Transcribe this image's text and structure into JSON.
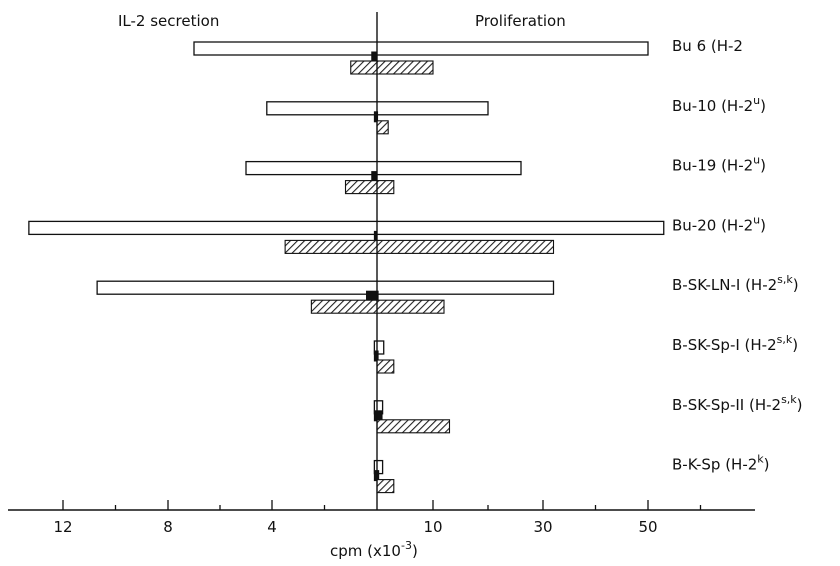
{
  "chart_data": {
    "type": "bar",
    "orientation": "horizontal-bidirectional",
    "left_label": "IL-2 secretion",
    "right_label": "Proliferation",
    "xlabel": "cpm (x10",
    "xlabel_sup": "-3",
    "xlabel_end": ")",
    "left_ticks": [
      "12",
      "8",
      "4"
    ],
    "right_ticks": [
      "10",
      "30",
      "50"
    ],
    "categories": [
      {
        "name": "Bu 6 (H-2",
        "sup": "",
        "tail": ""
      },
      {
        "name": "Bu-10 (H-2",
        "sup": "u",
        "tail": ")"
      },
      {
        "name": "Bu-19 (H-2",
        "sup": "u",
        "tail": ")"
      },
      {
        "name": "Bu-20 (H-2",
        "sup": "u",
        "tail": ")"
      },
      {
        "name": "B-SK-LN-I (H-2",
        "sup": "s,k",
        "tail": ")"
      },
      {
        "name": "B-SK-Sp-I (H-2",
        "sup": "s,k",
        "tail": ")"
      },
      {
        "name": "B-SK-Sp-II (H-2",
        "sup": "s,k",
        "tail": ")"
      },
      {
        "name": "B-K-Sp (H-2",
        "sup": "k",
        "tail": ")"
      }
    ],
    "series": [
      {
        "style": "open",
        "il2_secretion": [
          7.0,
          4.2,
          5.0,
          13.3,
          10.7,
          0.1,
          0.1,
          0.1
        ],
        "proliferation": [
          50,
          20,
          26,
          53,
          32,
          1.2,
          1.0,
          1.0
        ]
      },
      {
        "style": "solid",
        "il2_secretion": [
          0.2,
          0.1,
          0.2,
          0.1,
          0.4,
          0.1,
          0.1,
          0.1
        ],
        "proliferation": [
          0.0,
          0.1,
          0.0,
          0.0,
          0.2,
          0.2,
          0.9,
          0.3
        ]
      },
      {
        "style": "hatched",
        "il2_secretion": [
          1.0,
          0.0,
          1.2,
          3.5,
          2.5,
          0.0,
          0.0,
          0.0
        ],
        "proliferation": [
          10,
          2.0,
          3.0,
          32,
          12,
          3.0,
          13,
          3.0
        ]
      }
    ]
  }
}
